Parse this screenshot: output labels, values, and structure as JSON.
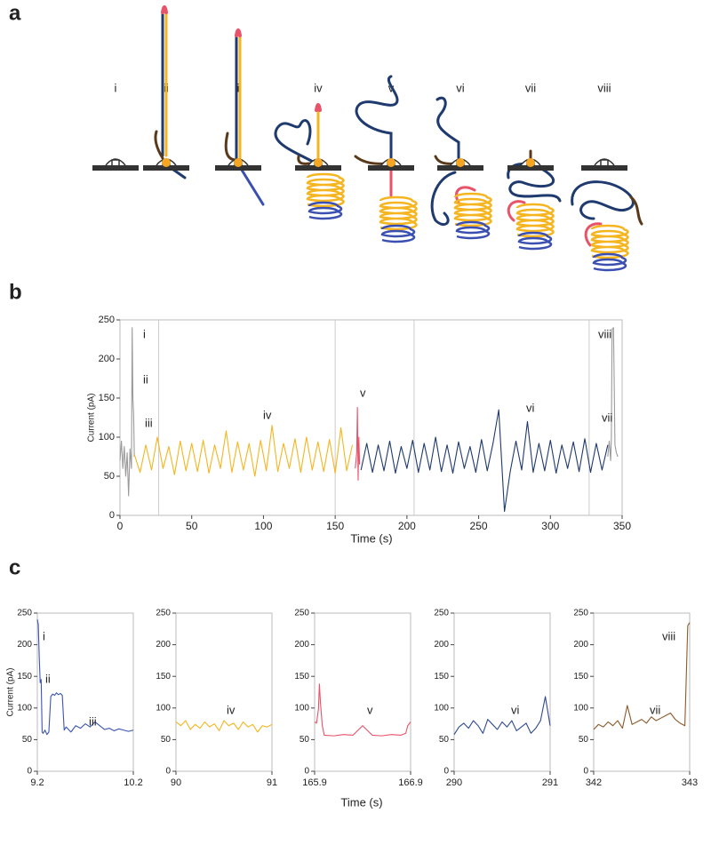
{
  "panel_labels": [
    "a",
    "b",
    "c"
  ],
  "diagram": {
    "labels": [
      "i",
      "ii",
      "iii",
      "iv",
      "v",
      "vi",
      "vii",
      "viii"
    ]
  },
  "chart_data": [
    {
      "type": "line",
      "xlabel": "Time (s)",
      "ylabel": "Current (pA)",
      "xlim": [
        0,
        350
      ],
      "ylim": [
        0,
        250
      ],
      "xticks": [
        0,
        50,
        100,
        150,
        200,
        250,
        300,
        350
      ],
      "yticks": [
        0,
        50,
        100,
        150,
        200,
        250
      ],
      "vlines": [
        27,
        150,
        205,
        327
      ],
      "annotations": [
        "i",
        "ii",
        "iii",
        "iv",
        "v",
        "vi",
        "vii",
        "viii"
      ],
      "series": [
        {
          "color": "#9a9a9a",
          "x": [
            0,
            1,
            2,
            3,
            4,
            5,
            6,
            7,
            8,
            8.5,
            9,
            9.5,
            10
          ],
          "values": [
            70,
            95,
            60,
            88,
            50,
            80,
            25,
            85,
            60,
            240,
            150,
            130,
            75
          ]
        },
        {
          "color": "#f5b520",
          "x": [
            10,
            14,
            18,
            22,
            26,
            30,
            34,
            38,
            42,
            46,
            50,
            54,
            58,
            62,
            66,
            70,
            74,
            78,
            82,
            86,
            90,
            94,
            98,
            102,
            106,
            110,
            114,
            118,
            122,
            126,
            130,
            134,
            138,
            142,
            146,
            150,
            154,
            158,
            162
          ],
          "values": [
            78,
            55,
            90,
            58,
            100,
            60,
            88,
            52,
            95,
            57,
            92,
            56,
            96,
            54,
            90,
            60,
            108,
            55,
            94,
            58,
            92,
            50,
            96,
            57,
            115,
            56,
            92,
            60,
            98,
            55,
            100,
            58,
            94,
            56,
            97,
            54,
            112,
            57,
            90
          ]
        },
        {
          "color": "#e8536a",
          "x": [
            164,
            165,
            165.5,
            166,
            166.5,
            167
          ],
          "values": [
            60,
            80,
            138,
            45,
            100,
            65
          ]
        },
        {
          "color": "#1f3a6e",
          "x": [
            168,
            172,
            176,
            180,
            184,
            188,
            192,
            196,
            200,
            204,
            208,
            212,
            216,
            220,
            224,
            228,
            232,
            236,
            240,
            244,
            248,
            252,
            256,
            260,
            264,
            268,
            272,
            276,
            280,
            284,
            288,
            292,
            296,
            300,
            304,
            308,
            312,
            316,
            320,
            324,
            328,
            332,
            336,
            340
          ],
          "values": [
            58,
            92,
            55,
            90,
            57,
            95,
            54,
            88,
            60,
            96,
            55,
            92,
            58,
            100,
            56,
            90,
            54,
            94,
            60,
            88,
            55,
            97,
            57,
            92,
            135,
            5,
            56,
            95,
            58,
            120,
            55,
            92,
            57,
            96,
            54,
            90,
            60,
            94,
            56,
            98,
            55,
            92,
            58,
            90
          ]
        },
        {
          "color": "#9a9a9a",
          "x": [
            340,
            341,
            342,
            342.5,
            343,
            344,
            345,
            346,
            347
          ],
          "values": [
            75,
            95,
            70,
            100,
            238,
            240,
            90,
            80,
            75
          ]
        }
      ]
    },
    {
      "type": "line",
      "ylabel": "Current (pA)",
      "xlim": [
        9.2,
        10.2
      ],
      "ylim": [
        0,
        250
      ],
      "xticks": [
        9.2,
        10.2
      ],
      "yticks": [
        0,
        50,
        100,
        150,
        200,
        250
      ],
      "annotations": [
        "i",
        "ii",
        "iii"
      ],
      "series": [
        {
          "color": "#3b55b0",
          "x": [
            9.2,
            9.21,
            9.22,
            9.23,
            9.24,
            9.25,
            9.26,
            9.28,
            9.3,
            9.32,
            9.34,
            9.36,
            9.38,
            9.4,
            9.42,
            9.44,
            9.46,
            9.48,
            9.5,
            9.55,
            9.6,
            9.65,
            9.7,
            9.75,
            9.8,
            9.85,
            9.9,
            9.95,
            10,
            10.05,
            10.1,
            10.15,
            10.2
          ],
          "values": [
            240,
            232,
            180,
            140,
            145,
            62,
            60,
            65,
            58,
            62,
            118,
            122,
            120,
            124,
            121,
            123,
            120,
            65,
            70,
            62,
            72,
            68,
            75,
            70,
            78,
            72,
            66,
            68,
            64,
            67,
            65,
            63,
            65
          ]
        }
      ]
    },
    {
      "type": "line",
      "xlim": [
        90,
        91
      ],
      "ylim": [
        0,
        250
      ],
      "xticks": [
        90,
        91
      ],
      "yticks": [
        0,
        50,
        100,
        150,
        200,
        250
      ],
      "annotations": [
        "iv"
      ],
      "series": [
        {
          "color": "#f5b520",
          "x": [
            90,
            90.05,
            90.1,
            90.15,
            90.2,
            90.25,
            90.3,
            90.35,
            90.4,
            90.45,
            90.5,
            90.55,
            90.6,
            90.65,
            90.7,
            90.75,
            90.8,
            90.85,
            90.9,
            90.95,
            91
          ],
          "values": [
            78,
            72,
            80,
            66,
            74,
            68,
            78,
            70,
            75,
            64,
            80,
            72,
            76,
            66,
            78,
            70,
            74,
            62,
            72,
            70,
            74
          ]
        }
      ]
    },
    {
      "type": "line",
      "xlabel": "Time (s)",
      "xlim": [
        165.9,
        166.9
      ],
      "ylim": [
        0,
        250
      ],
      "xticks": [
        165.9,
        166.9
      ],
      "yticks": [
        0,
        50,
        100,
        150,
        200,
        250
      ],
      "annotations": [
        "v"
      ],
      "series": [
        {
          "color": "#e8536a",
          "x": [
            165.9,
            165.92,
            165.94,
            165.95,
            165.96,
            165.98,
            166,
            166.1,
            166.2,
            166.3,
            166.4,
            166.5,
            166.6,
            166.7,
            166.8,
            166.85,
            166.87,
            166.9
          ],
          "values": [
            78,
            76,
            98,
            138,
            110,
            72,
            57,
            56,
            58,
            57,
            72,
            57,
            56,
            58,
            57,
            60,
            72,
            78
          ]
        }
      ]
    },
    {
      "type": "line",
      "xlim": [
        290,
        291
      ],
      "ylim": [
        0,
        250
      ],
      "xticks": [
        290,
        291
      ],
      "yticks": [
        0,
        50,
        100,
        150,
        200,
        250
      ],
      "annotations": [
        "vi"
      ],
      "series": [
        {
          "color": "#2e4a8f",
          "x": [
            290,
            290.05,
            290.1,
            290.15,
            290.2,
            290.25,
            290.3,
            290.35,
            290.4,
            290.45,
            290.5,
            290.55,
            290.6,
            290.65,
            290.7,
            290.75,
            290.8,
            290.85,
            290.9,
            290.95,
            291
          ],
          "values": [
            58,
            70,
            76,
            68,
            80,
            72,
            60,
            82,
            74,
            66,
            78,
            70,
            80,
            64,
            70,
            76,
            60,
            68,
            80,
            118,
            72
          ]
        }
      ]
    },
    {
      "type": "line",
      "xlim": [
        342,
        343
      ],
      "ylim": [
        0,
        250
      ],
      "xticks": [
        342,
        343
      ],
      "yticks": [
        0,
        50,
        100,
        150,
        200,
        250
      ],
      "annotations": [
        "vii",
        "viii"
      ],
      "series": [
        {
          "color": "#8b5a2b",
          "x": [
            342,
            342.05,
            342.1,
            342.15,
            342.2,
            342.25,
            342.3,
            342.35,
            342.4,
            342.45,
            342.5,
            342.55,
            342.6,
            342.65,
            342.7,
            342.75,
            342.8,
            342.85,
            342.9,
            342.95,
            342.98,
            343
          ],
          "values": [
            66,
            74,
            70,
            78,
            72,
            80,
            68,
            104,
            74,
            78,
            82,
            76,
            86,
            80,
            84,
            88,
            92,
            82,
            76,
            72,
            230,
            235
          ]
        }
      ]
    }
  ]
}
